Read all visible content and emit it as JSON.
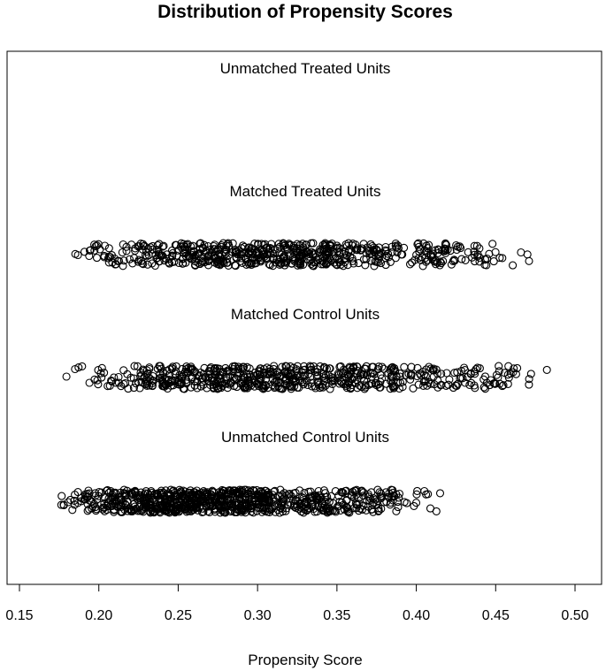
{
  "chart_data": {
    "type": "scatter",
    "title": "Distribution of Propensity Scores",
    "xlabel": "Propensity Score",
    "ylabel": "",
    "xlim": [
      0.15,
      0.5
    ],
    "x_ticks": [
      0.15,
      0.2,
      0.25,
      0.3,
      0.35,
      0.4,
      0.45,
      0.5
    ],
    "x_tick_labels": [
      "0.15",
      "0.20",
      "0.25",
      "0.30",
      "0.35",
      "0.40",
      "0.45",
      "0.50"
    ],
    "grid": false,
    "legend": "none",
    "series": [
      {
        "name": "Unmatched Treated Units",
        "count": 0,
        "range": null,
        "mode": null
      },
      {
        "name": "Matched Treated Units",
        "count": 620,
        "range": [
          0.177,
          0.487
        ],
        "mode": 0.285
      },
      {
        "name": "Matched Control Units",
        "count": 620,
        "range": [
          0.177,
          0.489
        ],
        "mode": 0.29
      },
      {
        "name": "Unmatched Control Units",
        "count": 850,
        "range": [
          0.17,
          0.418
        ],
        "mode": 0.255
      }
    ]
  }
}
